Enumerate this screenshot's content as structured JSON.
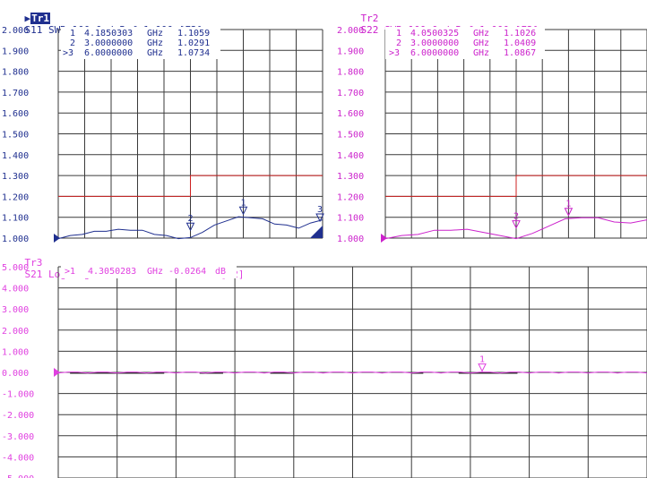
{
  "traces": [
    {
      "id": "tr1",
      "label": "Tr1",
      "header": "S11 SWR 100.0m/ Ref 1.000 [F2]",
      "active": true,
      "color": "#1f2f8f",
      "ref_value": 1.0,
      "y_ticks": [
        "2.000",
        "1.900",
        "1.800",
        "1.700",
        "1.600",
        "1.500",
        "1.400",
        "1.300",
        "1.200",
        "1.100",
        "1.000"
      ],
      "markers": [
        {
          "num": "1",
          "freq": "4.1850303",
          "unit": "GHz",
          "value": "1.1059"
        },
        {
          "num": "2",
          "freq": "3.0000000",
          "unit": "GHz",
          "value": "1.0291"
        },
        {
          "num": ">3",
          "freq": "6.0000000",
          "unit": "GHz",
          "value": "1.0734"
        }
      ],
      "marker_flags": [
        {
          "label": "2",
          "value": 1.029
        },
        {
          "label": "1",
          "value": 1.106
        },
        {
          "label": "3",
          "value": 1.073
        }
      ],
      "limit_levels": [
        1.2,
        1.3
      ],
      "curve": [
        1.0,
        1.01,
        1.02,
        1.03,
        1.035,
        1.04,
        1.04,
        1.035,
        1.02,
        1.01,
        1.0,
        1.0,
        1.03,
        1.06,
        1.085,
        1.1,
        1.1,
        1.09,
        1.07,
        1.06,
        1.05,
        1.07,
        1.09
      ]
    },
    {
      "id": "tr2",
      "label": "Tr2",
      "header": "S22 SWR 100.0m/ Ref 1.000 [F2]",
      "active": false,
      "color": "#cc22cc",
      "ref_value": 1.0,
      "y_ticks": [
        "2.000",
        "1.900",
        "1.800",
        "1.700",
        "1.600",
        "1.500",
        "1.400",
        "1.300",
        "1.200",
        "1.100",
        "1.000"
      ],
      "markers": [
        {
          "num": "1",
          "freq": "4.0500325",
          "unit": "GHz",
          "value": "1.1026"
        },
        {
          "num": "2",
          "freq": "3.0000000",
          "unit": "GHz",
          "value": "1.0409"
        },
        {
          "num": ">3",
          "freq": "6.0000000",
          "unit": "GHz",
          "value": "1.0867"
        }
      ],
      "marker_flags": [
        {
          "label": "2",
          "value": 1.04
        },
        {
          "label": "1",
          "value": 1.1
        }
      ],
      "limit_levels": [
        1.2,
        1.3
      ],
      "curve": [
        1.0,
        1.01,
        1.02,
        1.035,
        1.04,
        1.04,
        1.03,
        1.01,
        1.0,
        1.02,
        1.06,
        1.09,
        1.1,
        1.095,
        1.08,
        1.07,
        1.09
      ]
    },
    {
      "id": "tr3",
      "label": "Tr3",
      "header": "S21 Log Mag 1.000dB/ Ref 0.000dB [F2]",
      "active": false,
      "color": "#e040e0",
      "ref_value": 0.0,
      "y_ticks": [
        "5.000",
        "4.000",
        "3.000",
        "2.000",
        "1.000",
        "0.000",
        "-1.000",
        "-2.000",
        "-3.000",
        "-4.000",
        "-5.000"
      ],
      "markers": [
        {
          "num": ">1",
          "freq": "4.3050283",
          "unit": "GHz",
          "value": "-0.0264",
          "value_unit": "dB"
        }
      ],
      "marker_flags": [
        {
          "label": "1",
          "value": -0.026
        }
      ]
    }
  ]
}
